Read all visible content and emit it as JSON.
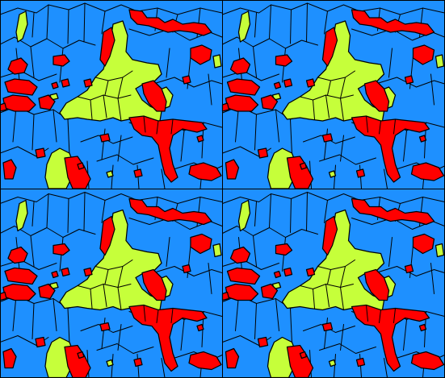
{
  "colors": {
    "background": "#1e90ff",
    "phase_a": "#ff0000",
    "phase_b": "#c6ff3a",
    "boundary": "#000000"
  },
  "tile": {
    "rows": 2,
    "cols": 2
  }
}
